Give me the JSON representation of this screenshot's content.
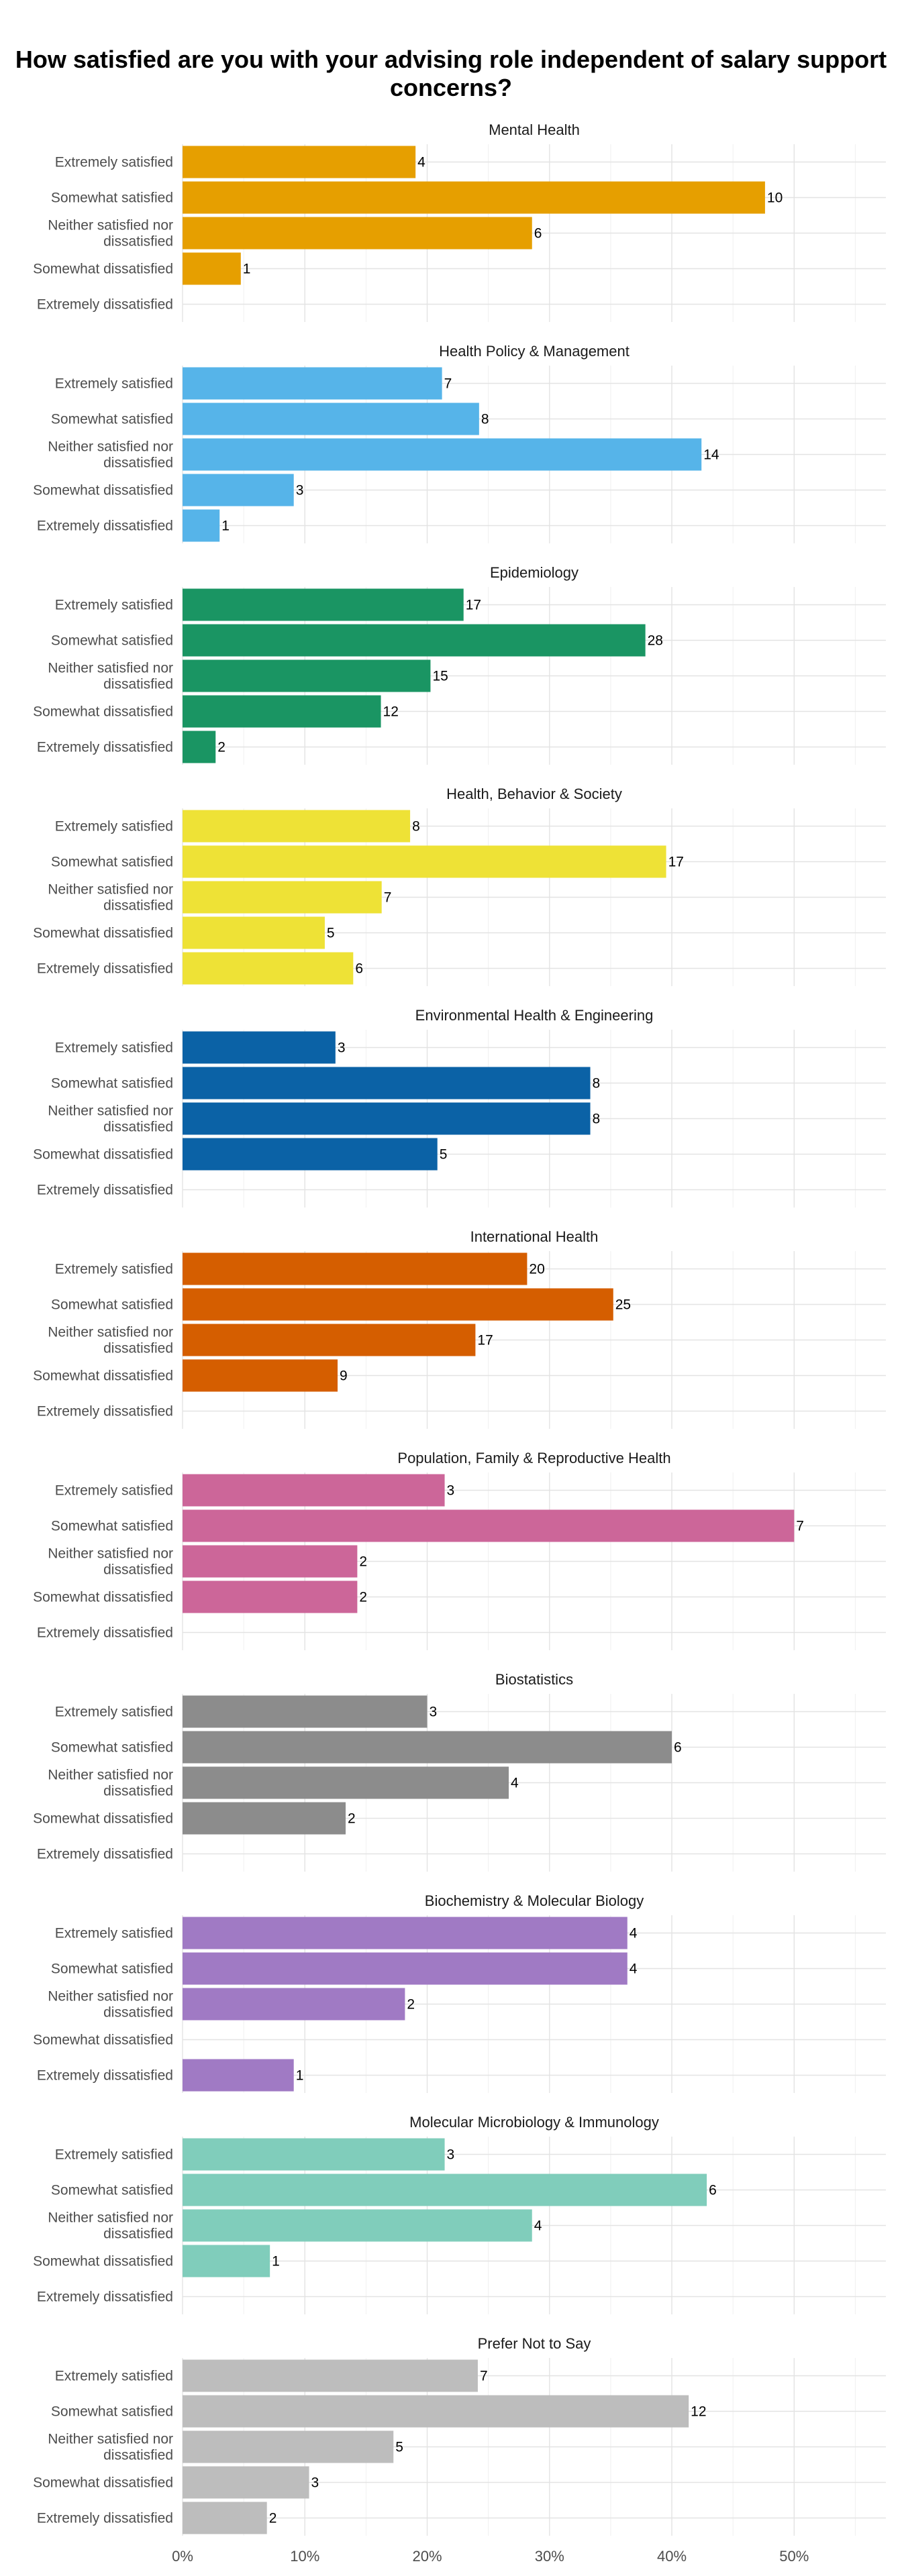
{
  "chart_data": {
    "type": "bar",
    "orientation": "horizontal",
    "title": "How satisfied are you with your advising role independent of salary support concerns?",
    "categories": [
      "Extremely satisfied",
      "Somewhat satisfied",
      "Neither satisfied nor dissatisfied",
      "Somewhat dissatisfied",
      "Extremely dissatisfied"
    ],
    "x_ticks": [
      "0%",
      "10%",
      "20%",
      "30%",
      "40%",
      "50%"
    ],
    "xlim": [
      0,
      0.575
    ],
    "grid": true,
    "legend": "none",
    "facets": [
      {
        "name": "Mental Health",
        "color": "#E69F00",
        "counts": [
          4,
          10,
          6,
          1,
          0
        ]
      },
      {
        "name": "Health Policy & Management",
        "color": "#56B4E9",
        "counts": [
          7,
          8,
          14,
          3,
          1
        ]
      },
      {
        "name": "Epidemiology",
        "color": "#1A9563",
        "counts": [
          17,
          28,
          15,
          12,
          2
        ]
      },
      {
        "name": "Health, Behavior & Society",
        "color": "#EEE236",
        "counts": [
          8,
          17,
          7,
          5,
          6
        ]
      },
      {
        "name": "Environmental Health & Engineering",
        "color": "#0B62A6",
        "counts": [
          3,
          8,
          8,
          5,
          0
        ]
      },
      {
        "name": "International Health",
        "color": "#D55E00",
        "counts": [
          20,
          25,
          17,
          9,
          0
        ]
      },
      {
        "name": "Population, Family & Reproductive Health",
        "color": "#CC6699",
        "counts": [
          3,
          7,
          2,
          2,
          0
        ]
      },
      {
        "name": "Biostatistics",
        "color": "#8C8C8C",
        "counts": [
          3,
          6,
          4,
          2,
          0
        ]
      },
      {
        "name": "Biochemistry & Molecular Biology",
        "color": "#A07AC4",
        "counts": [
          4,
          4,
          2,
          0,
          1
        ]
      },
      {
        "name": "Molecular Microbiology & Immunology",
        "color": "#80CDBB",
        "counts": [
          3,
          6,
          4,
          1,
          0
        ]
      },
      {
        "name": "Prefer Not to Say",
        "color": "#BDBDBD",
        "counts": [
          7,
          12,
          5,
          3,
          2
        ]
      }
    ]
  }
}
